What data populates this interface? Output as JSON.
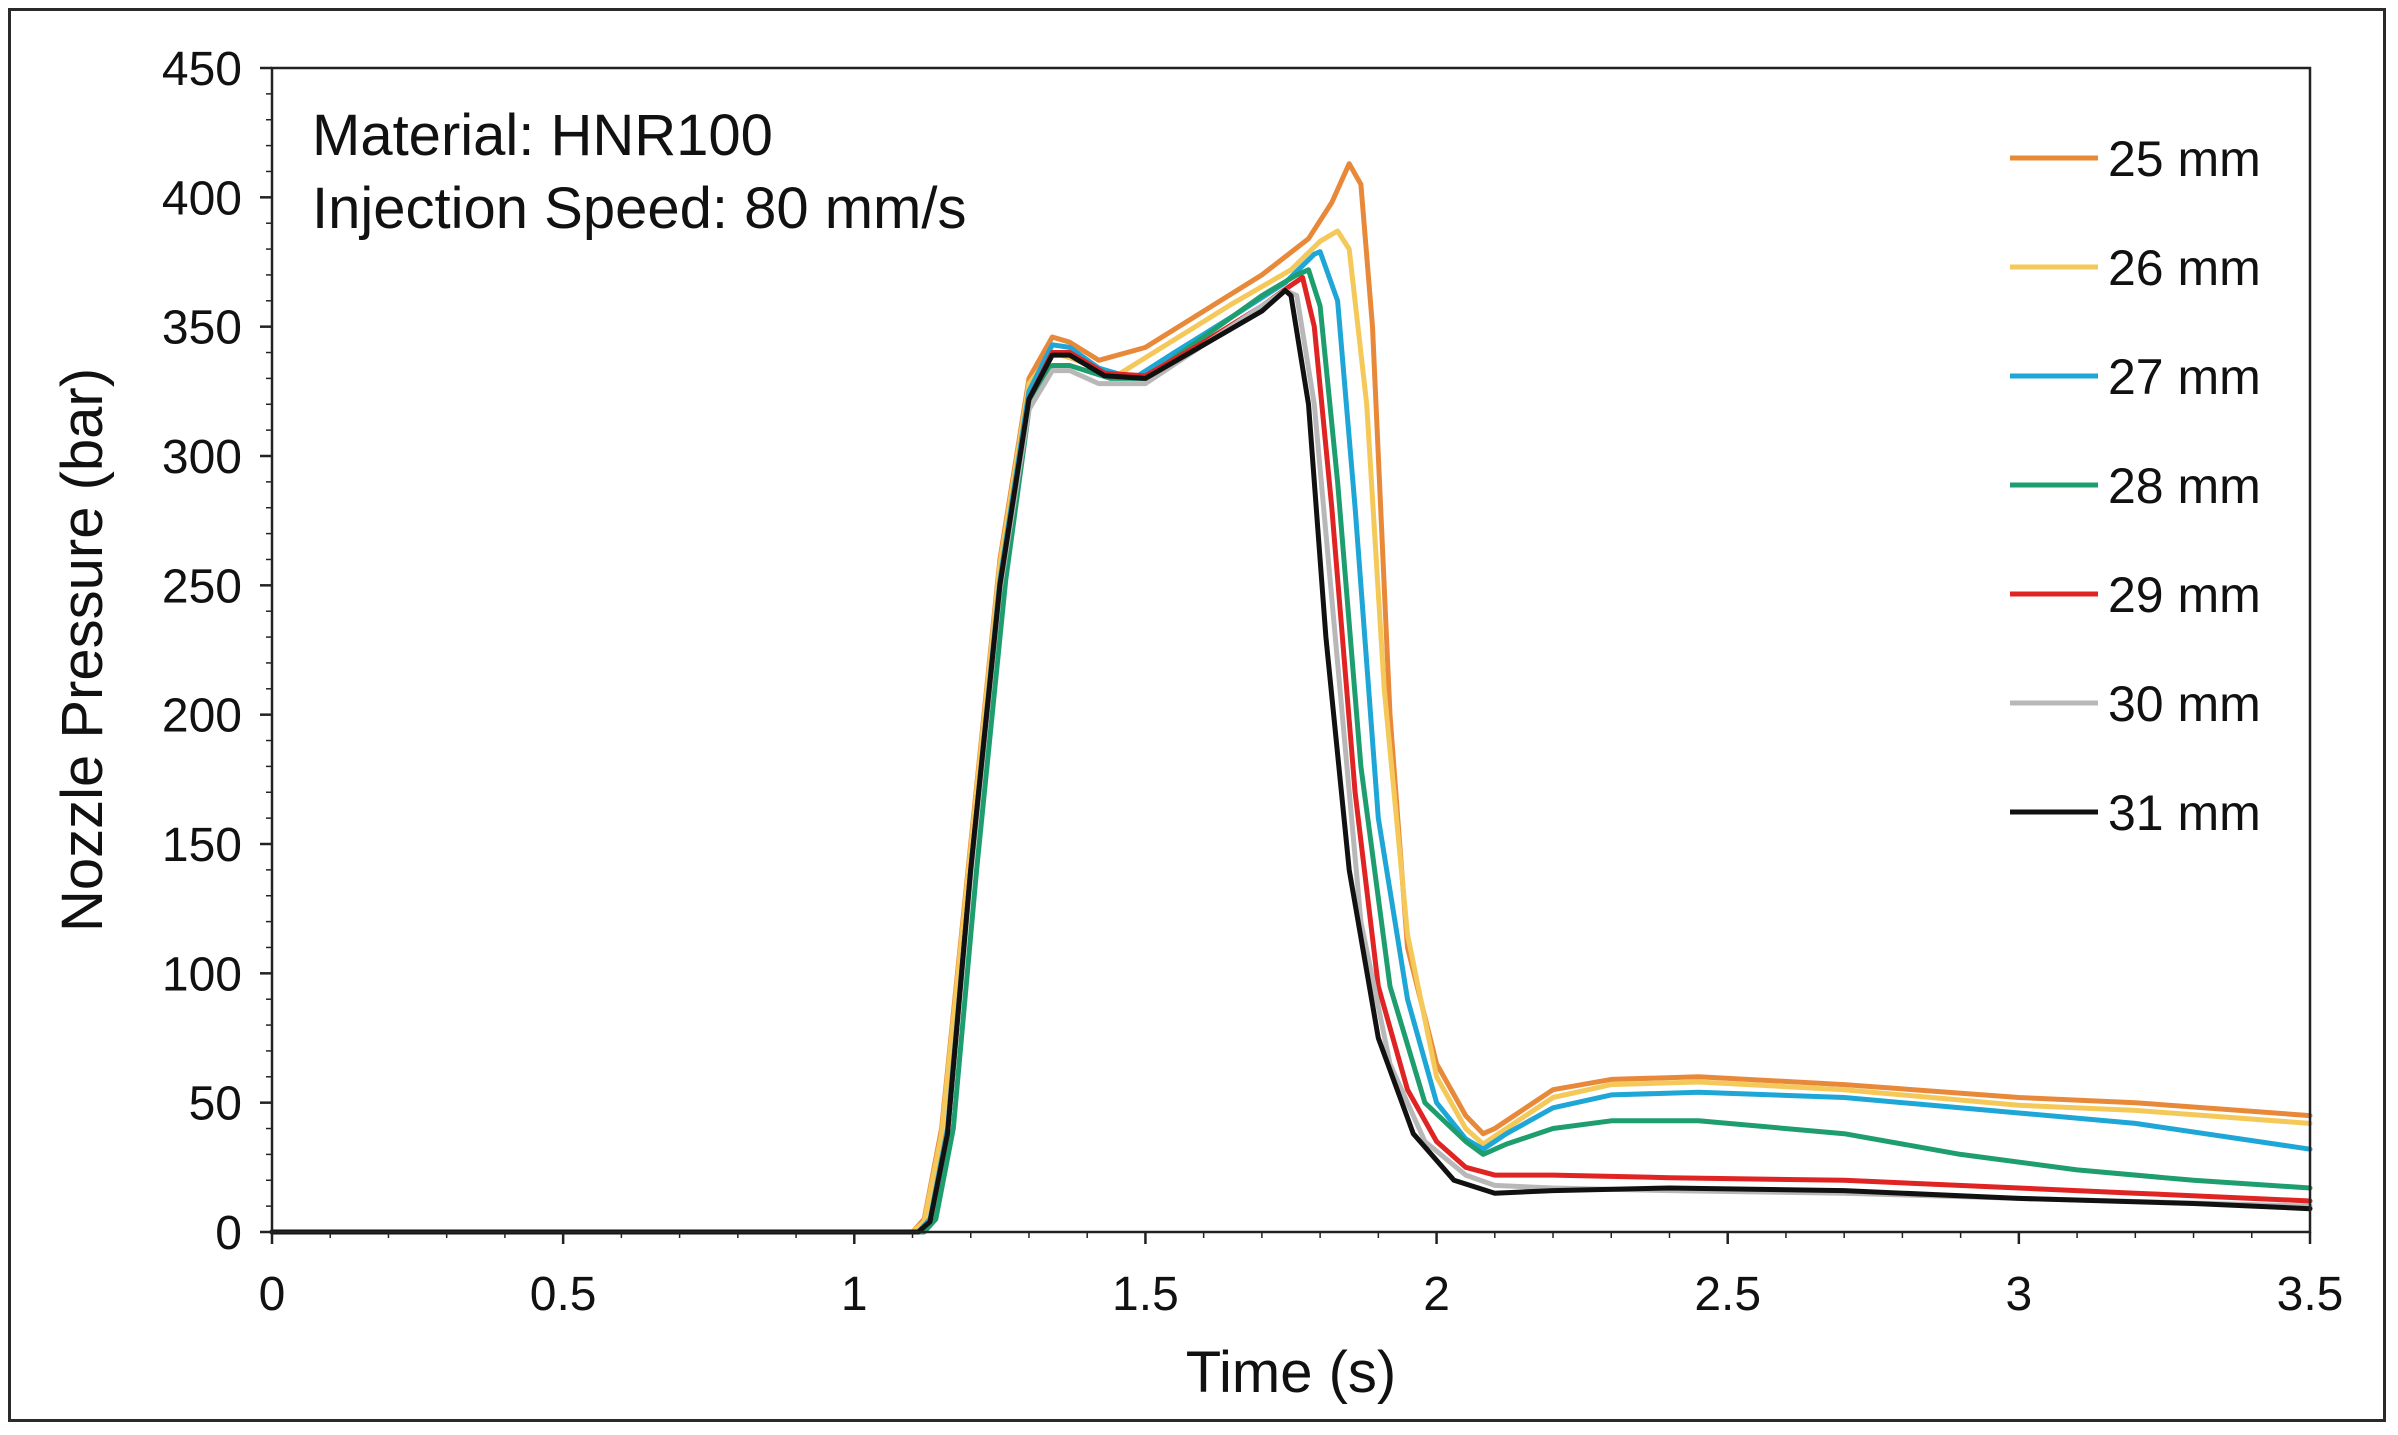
{
  "chart_data": {
    "type": "line",
    "title": "",
    "annotations": [
      "Material: HNR100",
      "Injection Speed: 80 mm/s"
    ],
    "xlabel": "Time (s)",
    "ylabel": "Nozzle Pressure (bar)",
    "xlim": [
      0,
      3.5
    ],
    "ylim": [
      0,
      450
    ],
    "xticks": [
      0,
      0.5,
      1,
      1.5,
      2,
      2.5,
      3,
      3.5
    ],
    "xtick_labels": [
      "0",
      "0.5",
      "1",
      "1.5",
      "2",
      "2.5",
      "3",
      "3.5"
    ],
    "yticks": [
      0,
      50,
      100,
      150,
      200,
      250,
      300,
      350,
      400,
      450
    ],
    "ytick_labels": [
      "0",
      "50",
      "100",
      "150",
      "200",
      "250",
      "300",
      "350",
      "400",
      "450"
    ],
    "grid": false,
    "legend_position": "right",
    "series": [
      {
        "name": "25 mm",
        "color": "#e8893a",
        "points": [
          [
            0,
            0
          ],
          [
            1.1,
            0
          ],
          [
            1.12,
            5
          ],
          [
            1.15,
            40
          ],
          [
            1.2,
            150
          ],
          [
            1.25,
            260
          ],
          [
            1.3,
            330
          ],
          [
            1.34,
            346
          ],
          [
            1.37,
            344
          ],
          [
            1.42,
            337
          ],
          [
            1.5,
            342
          ],
          [
            1.6,
            356
          ],
          [
            1.7,
            370
          ],
          [
            1.78,
            384
          ],
          [
            1.82,
            398
          ],
          [
            1.85,
            413
          ],
          [
            1.87,
            405
          ],
          [
            1.89,
            350
          ],
          [
            1.92,
            200
          ],
          [
            1.95,
            110
          ],
          [
            2.0,
            65
          ],
          [
            2.05,
            45
          ],
          [
            2.08,
            38
          ],
          [
            2.1,
            40
          ],
          [
            2.2,
            55
          ],
          [
            2.3,
            59
          ],
          [
            2.45,
            60
          ],
          [
            2.7,
            57
          ],
          [
            3.0,
            52
          ],
          [
            3.2,
            50
          ],
          [
            3.5,
            45
          ]
        ]
      },
      {
        "name": "26 mm",
        "color": "#f5c85a",
        "points": [
          [
            0,
            0
          ],
          [
            1.1,
            0
          ],
          [
            1.12,
            4
          ],
          [
            1.15,
            38
          ],
          [
            1.2,
            148
          ],
          [
            1.25,
            258
          ],
          [
            1.3,
            328
          ],
          [
            1.34,
            340
          ],
          [
            1.37,
            338
          ],
          [
            1.45,
            331
          ],
          [
            1.55,
            345
          ],
          [
            1.65,
            359
          ],
          [
            1.75,
            372
          ],
          [
            1.8,
            383
          ],
          [
            1.83,
            387
          ],
          [
            1.85,
            380
          ],
          [
            1.88,
            320
          ],
          [
            1.91,
            210
          ],
          [
            1.95,
            115
          ],
          [
            2.0,
            60
          ],
          [
            2.05,
            40
          ],
          [
            2.08,
            34
          ],
          [
            2.12,
            40
          ],
          [
            2.2,
            52
          ],
          [
            2.3,
            57
          ],
          [
            2.45,
            58
          ],
          [
            2.7,
            55
          ],
          [
            3.0,
            49
          ],
          [
            3.2,
            47
          ],
          [
            3.5,
            42
          ]
        ]
      },
      {
        "name": "27 mm",
        "color": "#1ea6d6",
        "points": [
          [
            0,
            0
          ],
          [
            1.11,
            0
          ],
          [
            1.13,
            5
          ],
          [
            1.16,
            40
          ],
          [
            1.2,
            140
          ],
          [
            1.25,
            252
          ],
          [
            1.3,
            325
          ],
          [
            1.34,
            343
          ],
          [
            1.37,
            342
          ],
          [
            1.42,
            334
          ],
          [
            1.48,
            330
          ],
          [
            1.55,
            340
          ],
          [
            1.65,
            354
          ],
          [
            1.74,
            367
          ],
          [
            1.79,
            378
          ],
          [
            1.8,
            379
          ],
          [
            1.83,
            360
          ],
          [
            1.86,
            280
          ],
          [
            1.9,
            160
          ],
          [
            1.95,
            90
          ],
          [
            2.0,
            50
          ],
          [
            2.05,
            36
          ],
          [
            2.08,
            32
          ],
          [
            2.12,
            38
          ],
          [
            2.2,
            48
          ],
          [
            2.3,
            53
          ],
          [
            2.45,
            54
          ],
          [
            2.7,
            52
          ],
          [
            3.0,
            46
          ],
          [
            3.2,
            42
          ],
          [
            3.5,
            32
          ]
        ]
      },
      {
        "name": "28 mm",
        "color": "#1e9e6e",
        "points": [
          [
            0,
            0
          ],
          [
            1.12,
            0
          ],
          [
            1.14,
            5
          ],
          [
            1.17,
            40
          ],
          [
            1.21,
            140
          ],
          [
            1.26,
            252
          ],
          [
            1.3,
            318
          ],
          [
            1.34,
            335
          ],
          [
            1.37,
            335
          ],
          [
            1.44,
            330
          ],
          [
            1.5,
            330
          ],
          [
            1.6,
            346
          ],
          [
            1.7,
            362
          ],
          [
            1.76,
            370
          ],
          [
            1.78,
            372
          ],
          [
            1.8,
            358
          ],
          [
            1.83,
            290
          ],
          [
            1.87,
            180
          ],
          [
            1.92,
            95
          ],
          [
            1.98,
            50
          ],
          [
            2.05,
            35
          ],
          [
            2.08,
            30
          ],
          [
            2.12,
            34
          ],
          [
            2.2,
            40
          ],
          [
            2.3,
            43
          ],
          [
            2.45,
            43
          ],
          [
            2.7,
            38
          ],
          [
            2.9,
            30
          ],
          [
            3.1,
            24
          ],
          [
            3.3,
            20
          ],
          [
            3.5,
            17
          ]
        ]
      },
      {
        "name": "29 mm",
        "color": "#e02424",
        "points": [
          [
            0,
            0
          ],
          [
            1.11,
            0
          ],
          [
            1.13,
            4
          ],
          [
            1.16,
            38
          ],
          [
            1.2,
            140
          ],
          [
            1.25,
            250
          ],
          [
            1.3,
            322
          ],
          [
            1.34,
            340
          ],
          [
            1.37,
            340
          ],
          [
            1.43,
            332
          ],
          [
            1.5,
            331
          ],
          [
            1.6,
            344
          ],
          [
            1.7,
            358
          ],
          [
            1.75,
            366
          ],
          [
            1.77,
            369
          ],
          [
            1.79,
            350
          ],
          [
            1.82,
            280
          ],
          [
            1.86,
            170
          ],
          [
            1.9,
            95
          ],
          [
            1.95,
            55
          ],
          [
            2.0,
            35
          ],
          [
            2.05,
            25
          ],
          [
            2.1,
            22
          ],
          [
            2.2,
            22
          ],
          [
            2.4,
            21
          ],
          [
            2.7,
            20
          ],
          [
            3.0,
            17
          ],
          [
            3.2,
            15
          ],
          [
            3.5,
            12
          ]
        ]
      },
      {
        "name": "30 mm",
        "color": "#b8b8b8",
        "points": [
          [
            0,
            0
          ],
          [
            1.11,
            0
          ],
          [
            1.13,
            4
          ],
          [
            1.16,
            38
          ],
          [
            1.2,
            138
          ],
          [
            1.25,
            248
          ],
          [
            1.3,
            318
          ],
          [
            1.34,
            333
          ],
          [
            1.37,
            333
          ],
          [
            1.42,
            328
          ],
          [
            1.5,
            328
          ],
          [
            1.6,
            343
          ],
          [
            1.7,
            358
          ],
          [
            1.74,
            364
          ],
          [
            1.76,
            362
          ],
          [
            1.79,
            320
          ],
          [
            1.83,
            220
          ],
          [
            1.87,
            120
          ],
          [
            1.92,
            65
          ],
          [
            1.98,
            35
          ],
          [
            2.05,
            22
          ],
          [
            2.1,
            18
          ],
          [
            2.2,
            17
          ],
          [
            2.4,
            16
          ],
          [
            2.7,
            15
          ],
          [
            3.0,
            13
          ],
          [
            3.5,
            10
          ]
        ]
      },
      {
        "name": "31 mm",
        "color": "#111111",
        "points": [
          [
            0,
            0
          ],
          [
            1.11,
            0
          ],
          [
            1.13,
            4
          ],
          [
            1.16,
            38
          ],
          [
            1.2,
            140
          ],
          [
            1.25,
            250
          ],
          [
            1.3,
            322
          ],
          [
            1.34,
            339
          ],
          [
            1.37,
            339
          ],
          [
            1.43,
            331
          ],
          [
            1.5,
            330
          ],
          [
            1.6,
            343
          ],
          [
            1.7,
            356
          ],
          [
            1.74,
            364
          ],
          [
            1.75,
            362
          ],
          [
            1.78,
            320
          ],
          [
            1.81,
            230
          ],
          [
            1.85,
            140
          ],
          [
            1.9,
            75
          ],
          [
            1.96,
            38
          ],
          [
            2.03,
            20
          ],
          [
            2.1,
            15
          ],
          [
            2.2,
            16
          ],
          [
            2.4,
            17
          ],
          [
            2.7,
            16
          ],
          [
            3.0,
            13
          ],
          [
            3.3,
            11
          ],
          [
            3.5,
            9
          ]
        ]
      }
    ]
  }
}
